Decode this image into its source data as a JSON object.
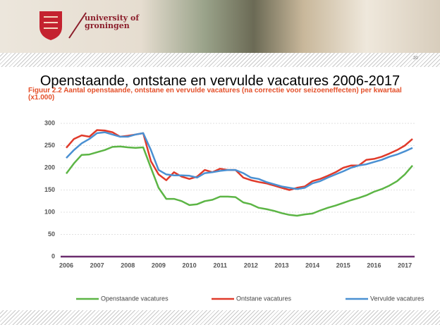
{
  "slide": {
    "logo": [
      "university of",
      "groningen"
    ],
    "page_number": "20",
    "title": "Openstaande, ontstane en vervulde vacatures 2006-2017"
  },
  "chart_data": {
    "type": "line",
    "title": "Figuur 2.2 Aantal openstaande, ontstane en vervulde vacatures (na correctie voor seizoeneffecten) per kwartaal (x1.000)",
    "x": [
      2006,
      2006.25,
      2006.5,
      2006.75,
      2007,
      2007.25,
      2007.5,
      2007.75,
      2008,
      2008.25,
      2008.5,
      2008.75,
      2009,
      2009.25,
      2009.5,
      2009.75,
      2010,
      2010.25,
      2010.5,
      2010.75,
      2011,
      2011.25,
      2011.5,
      2011.75,
      2012,
      2012.25,
      2012.5,
      2012.75,
      2013,
      2013.25,
      2013.5,
      2013.75,
      2014,
      2014.25,
      2014.5,
      2014.75,
      2015,
      2015.25,
      2015.5,
      2015.75,
      2016,
      2016.25,
      2016.5,
      2016.75,
      2017,
      2017.25
    ],
    "series": [
      {
        "name": "Openstaande vacatures",
        "color": "#5cb545",
        "values": [
          187,
          210,
          229,
          230,
          235,
          240,
          247,
          248,
          246,
          245,
          246,
          200,
          155,
          130,
          130,
          125,
          116,
          118,
          125,
          128,
          135,
          135,
          134,
          122,
          118,
          110,
          107,
          103,
          98,
          94,
          92,
          95,
          97,
          104,
          110,
          115,
          121,
          127,
          132,
          138,
          146,
          152,
          160,
          170,
          185,
          205
        ]
      },
      {
        "name": "Ontstane vacatures",
        "color": "#e03a2a",
        "values": [
          245,
          265,
          273,
          270,
          285,
          284,
          280,
          270,
          272,
          275,
          278,
          215,
          185,
          172,
          190,
          180,
          175,
          180,
          195,
          190,
          198,
          195,
          195,
          178,
          172,
          168,
          165,
          160,
          155,
          150,
          155,
          158,
          170,
          175,
          182,
          190,
          200,
          205,
          205,
          218,
          220,
          225,
          232,
          240,
          250,
          265
        ]
      },
      {
        "name": "Vervulde vacatures",
        "color": "#4a90d2",
        "values": [
          222,
          240,
          255,
          265,
          278,
          280,
          275,
          270,
          270,
          275,
          278,
          240,
          195,
          185,
          183,
          183,
          182,
          178,
          188,
          190,
          193,
          195,
          195,
          188,
          178,
          175,
          168,
          163,
          158,
          155,
          152,
          155,
          165,
          170,
          178,
          185,
          192,
          200,
          205,
          208,
          213,
          218,
          225,
          230,
          237,
          245
        ]
      }
    ],
    "xlim": [
      2006,
      2017.25
    ],
    "xticks": [
      2006,
      2007,
      2008,
      2009,
      2010,
      2011,
      2012,
      2013,
      2014,
      2015,
      2016,
      2017
    ],
    "ylim": [
      0,
      300
    ],
    "yticks": [
      0,
      50,
      100,
      150,
      200,
      250,
      300
    ],
    "grid": true
  }
}
